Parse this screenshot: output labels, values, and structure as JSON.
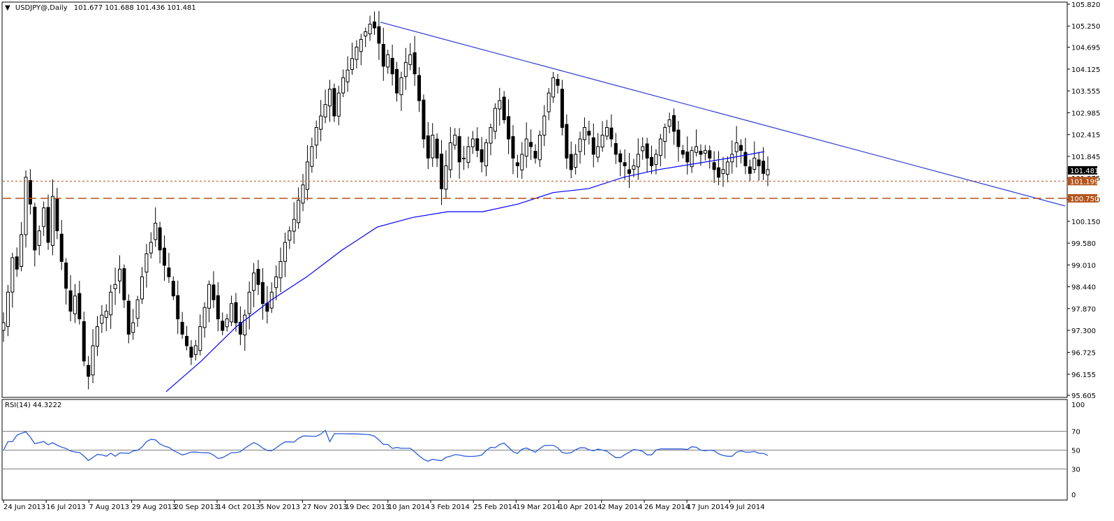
{
  "window": {
    "title_prefix": "▼",
    "symbol": "USDJPY@,Daily",
    "ohlc": "101.677 101.688 101.436 101.481"
  },
  "colors": {
    "background": "#ffffff",
    "candle": "#000000",
    "ma": "#0000ff",
    "trendline": "#3b49d6",
    "support_short": "#b3541e",
    "support_long": "#b3541e",
    "rsi_line": "#2a5bd7",
    "rsi_levels": "#808080",
    "price_tag_current": "#000000",
    "price_tag_support": "#b3541e"
  },
  "price_axis": {
    "labels": [
      "105.820",
      "105.250",
      "104.695",
      "104.125",
      "103.555",
      "102.985",
      "102.415",
      "101.845",
      "101.275",
      "100.720",
      "100.150",
      "99.580",
      "99.010",
      "98.440",
      "97.870",
      "97.300",
      "96.725",
      "96.155",
      "95.605"
    ],
    "current": "101.481",
    "support_short": "101.199",
    "support_long": "100.750"
  },
  "rsi": {
    "label": "RSI(14) 44.3222",
    "axis_labels": [
      "100",
      "70",
      "50",
      "30",
      "0"
    ],
    "levels": [
      70,
      50,
      30
    ]
  },
  "time_axis": {
    "labels": [
      "24 Jun 2013",
      "16 Jul 2013",
      "7 Aug 2013",
      "29 Aug 2013",
      "20 Sep 2013",
      "14 Oct 2013",
      "5 Nov 2013",
      "27 Nov 2013",
      "19 Dec 2013",
      "10 Jan 2014",
      "3 Feb 2014",
      "25 Feb 2014",
      "19 Mar 2014",
      "10 Apr 2014",
      "2 May 2014",
      "26 May 2014",
      "17 Jun 2014",
      "9 Jul 2014"
    ]
  },
  "chart_data": {
    "type": "candlestick",
    "symbol": "USDJPY",
    "timeframe": "Daily",
    "y_range": [
      95.605,
      105.82
    ],
    "dates": [
      "24 Jun 2013",
      "16 Jul 2013",
      "7 Aug 2013",
      "29 Aug 2013",
      "20 Sep 2013",
      "14 Oct 2013",
      "5 Nov 2013",
      "27 Nov 2013",
      "19 Dec 2013",
      "10 Jan 2014",
      "3 Feb 2014",
      "25 Feb 2014",
      "19 Mar 2014",
      "10 Apr 2014",
      "2 May 2014",
      "26 May 2014",
      "17 Jun 2014",
      "9 Jul 2014"
    ],
    "close_path": [
      97.5,
      98.3,
      99.2,
      98.9,
      99.8,
      101.3,
      100.6,
      99.4,
      99.9,
      100.5,
      99.6,
      100.8,
      99.9,
      99.1,
      98.4,
      97.8,
      98.2,
      97.6,
      96.5,
      96.1,
      96.9,
      97.4,
      97.7,
      97.8,
      98.3,
      98.5,
      98.9,
      98.1,
      97.2,
      97.5,
      98.1,
      98.7,
      99.3,
      99.6,
      100.1,
      99.4,
      99.0,
      98.7,
      98.2,
      97.6,
      97.2,
      96.9,
      96.6,
      96.9,
      97.4,
      97.9,
      98.5,
      98.1,
      97.6,
      97.3,
      97.6,
      98.0,
      97.5,
      97.2,
      97.7,
      98.3,
      98.8,
      98.5,
      98.0,
      97.8,
      98.3,
      98.7,
      99.1,
      99.6,
      99.9,
      100.2,
      100.7,
      101.1,
      101.7,
      102.1,
      102.6,
      102.9,
      103.2,
      103.6,
      102.9,
      103.5,
      103.9,
      104.1,
      104.4,
      104.7,
      104.9,
      105.1,
      105.3,
      105.2,
      104.8,
      104.2,
      104.5,
      104.0,
      103.5,
      103.9,
      104.3,
      104.5,
      104.0,
      103.3,
      102.3,
      101.8,
      102.4,
      101.8,
      101.0,
      101.6,
      102.2,
      102.4,
      101.7,
      101.8,
      102.1,
      102.3,
      102.0,
      101.7,
      102.2,
      102.6,
      103.1,
      103.3,
      102.8,
      102.3,
      101.8,
      101.6,
      101.9,
      102.3,
      102.1,
      101.8,
      102.4,
      102.9,
      103.5,
      103.9,
      103.7,
      102.6,
      101.8,
      101.5,
      101.9,
      102.3,
      102.6,
      102.4,
      101.9,
      102.1,
      102.4,
      102.6,
      102.3,
      101.9,
      101.7,
      101.6,
      101.4,
      101.6,
      101.9,
      102.1,
      101.8,
      101.6,
      101.9,
      102.3,
      102.6,
      102.8,
      102.5,
      102.1,
      101.9,
      101.7,
      102.0,
      102.1,
      101.9,
      102.0,
      101.8,
      101.5,
      101.3,
      101.5,
      101.7,
      101.9,
      102.2,
      102.0,
      101.6,
      101.4,
      101.8,
      101.6,
      101.4,
      101.5
    ],
    "ma200_path": [
      95.7,
      96.5,
      97.4,
      98.1,
      98.7,
      99.4,
      100.0,
      100.25,
      100.4,
      100.4,
      100.6,
      100.9,
      101.0,
      101.3,
      101.5,
      101.65,
      101.8,
      101.97
    ],
    "trendline": {
      "from": {
        "date": "19 Dec 2013",
        "value": 105.35
      },
      "to_end_value": 100.55
    },
    "support_levels": [
      101.199,
      100.75
    ],
    "rsi_period": 14,
    "rsi_last": 44.3222,
    "rsi_levels": [
      70,
      50,
      30
    ]
  }
}
